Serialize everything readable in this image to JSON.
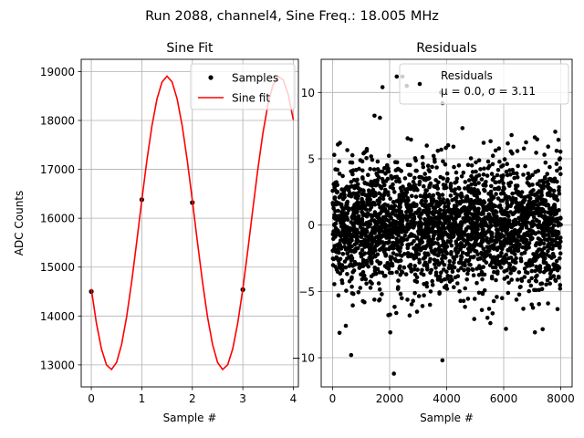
{
  "figure": {
    "suptitle": "Run 2088, channel4, Sine Freq.: 18.005 MHz"
  },
  "chart_data": [
    {
      "type": "line",
      "title": "Sine Fit",
      "xlabel": "Sample #",
      "ylabel": "ADC Counts",
      "xlim": [
        -0.2,
        4.1
      ],
      "ylim": [
        12550,
        19250
      ],
      "xticks": [
        0,
        1,
        2,
        3,
        4
      ],
      "yticks": [
        13000,
        14000,
        15000,
        16000,
        17000,
        18000,
        19000
      ],
      "grid": true,
      "legend_position": "top-right",
      "series": [
        {
          "name": "Samples",
          "style": "points",
          "color": "#000000",
          "x": [
            0,
            1,
            2,
            3
          ],
          "y": [
            14500,
            16380,
            16320,
            14540
          ]
        },
        {
          "name": "Sine fit",
          "style": "line",
          "color": "#ff0000",
          "sine_model": {
            "offset": 15905,
            "amplitude": 3000,
            "period": 2.22,
            "phase_x": 1.5,
            "x_start": 0,
            "x_end": 4,
            "step": 0.1
          }
        }
      ]
    },
    {
      "type": "scatter",
      "title": "Residuals",
      "xlabel": "Sample #",
      "ylabel": "",
      "xlim": [
        -400,
        8400
      ],
      "ylim": [
        -12.2,
        12.5
      ],
      "xticks": [
        0,
        2000,
        4000,
        6000,
        8000
      ],
      "yticks": [
        -10,
        -5,
        0,
        5,
        10
      ],
      "grid": true,
      "legend_position": "top-right",
      "series": [
        {
          "name": "Residuals",
          "stats_label": "μ = 0.0, σ = 3.11",
          "color": "#000000",
          "n_points": 8000,
          "x_range": [
            0,
            8000
          ],
          "mean": 0.0,
          "std": 3.11,
          "outliers": [
            {
              "x": 2150,
              "y": -11.2
            },
            {
              "x": 650,
              "y": -9.8
            },
            {
              "x": 3850,
              "y": -10.2
            },
            {
              "x": 2250,
              "y": 11.2
            },
            {
              "x": 2450,
              "y": 11.2
            },
            {
              "x": 1750,
              "y": 10.4
            },
            {
              "x": 2600,
              "y": 10.5
            },
            {
              "x": 3800,
              "y": 10.0
            }
          ]
        }
      ]
    }
  ]
}
